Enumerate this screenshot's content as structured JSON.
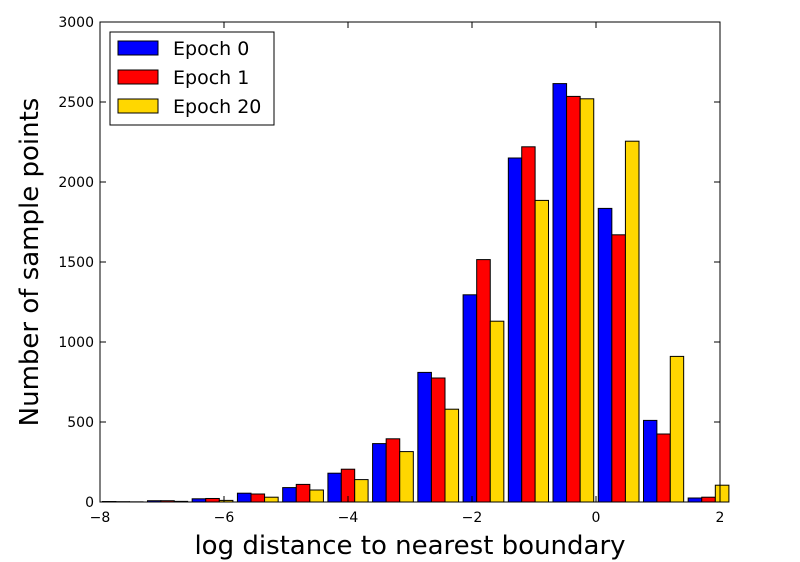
{
  "chart_data": {
    "type": "bar",
    "xlabel": "log distance to nearest boundary",
    "ylabel": "Number of sample points",
    "xlim": [
      -8,
      2
    ],
    "ylim": [
      0,
      3000
    ],
    "xticks": [
      -8,
      -6,
      -4,
      -2,
      0,
      2
    ],
    "xtick_labels": [
      "−8",
      "−6",
      "−4",
      "−2",
      "0",
      "2"
    ],
    "yticks": [
      0,
      500,
      1000,
      1500,
      2000,
      2500,
      3000
    ],
    "ytick_labels": [
      "0",
      "500",
      "1000",
      "1500",
      "2000",
      "2500",
      "3000"
    ],
    "bin_edges": [
      -8.0,
      -7.27,
      -6.55,
      -5.82,
      -5.09,
      -4.36,
      -3.64,
      -2.91,
      -2.18,
      -1.45,
      -0.73,
      0.0,
      0.73,
      1.45,
      2.18
    ],
    "series": [
      {
        "name": "Epoch 0",
        "color": "#0000ff",
        "values": [
          3,
          8,
          20,
          55,
          90,
          180,
          365,
          810,
          1295,
          2150,
          2615,
          1835,
          510,
          25
        ]
      },
      {
        "name": "Epoch 1",
        "color": "#ff0000",
        "values": [
          2,
          8,
          22,
          50,
          110,
          205,
          395,
          775,
          1515,
          2220,
          2535,
          1670,
          425,
          30
        ]
      },
      {
        "name": "Epoch 20",
        "color": "#ffd700",
        "values": [
          1,
          4,
          10,
          30,
          75,
          140,
          315,
          580,
          1130,
          1885,
          2520,
          2255,
          910,
          105
        ]
      }
    ],
    "grid": false,
    "legend_position": "top-left"
  }
}
